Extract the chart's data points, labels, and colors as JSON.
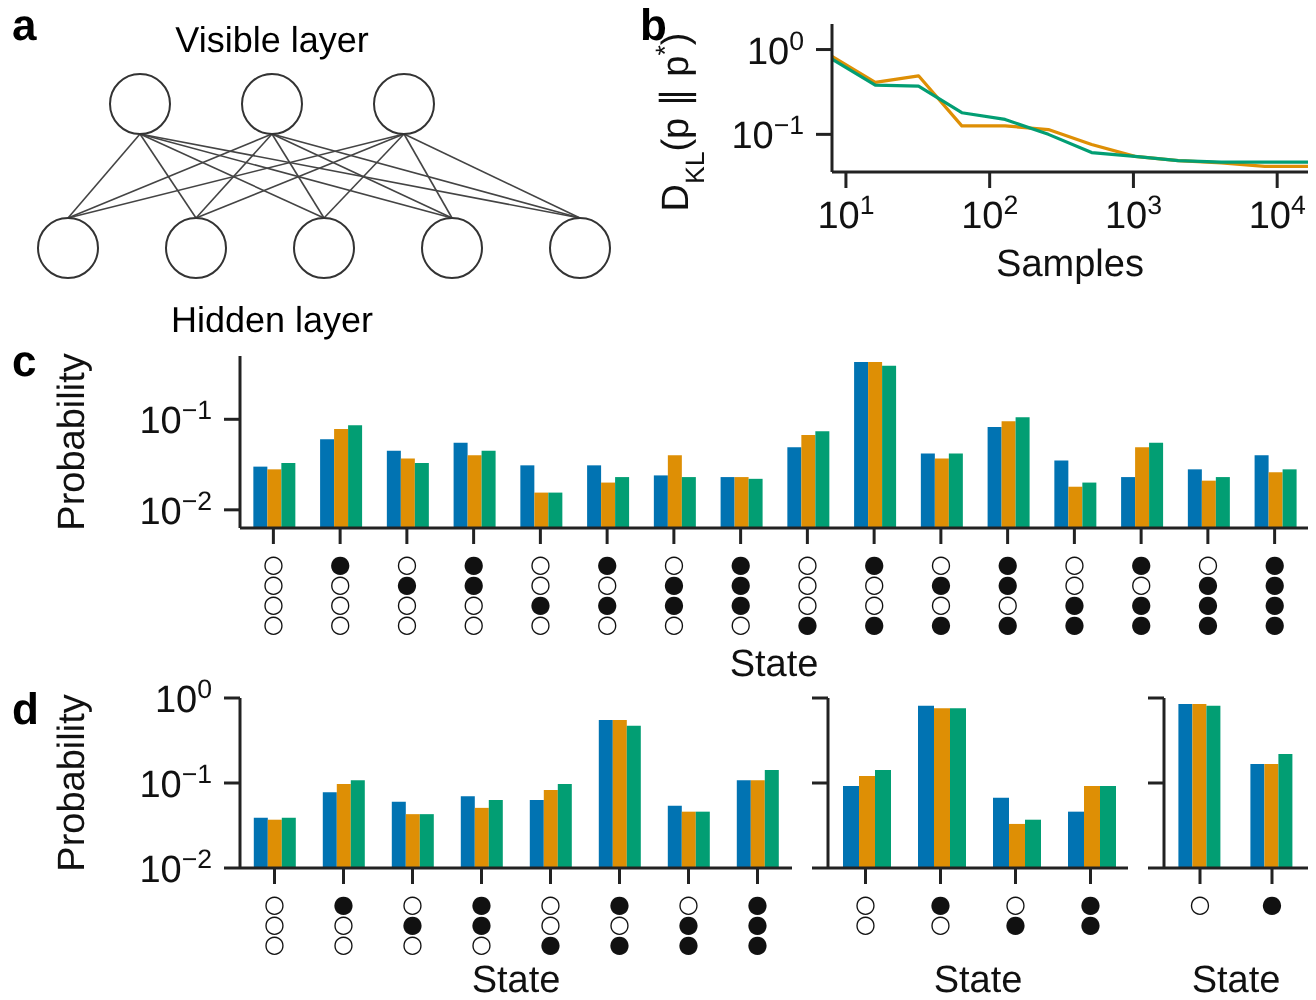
{
  "chart_data": [
    {
      "type": "other",
      "title": "a",
      "annotations": [
        "Visible layer",
        "Hidden layer"
      ]
    },
    {
      "type": "line",
      "title": "b",
      "xlabel": "Samples",
      "ylabel": "D$_{KL}$(p ∥ p$^{*}$)",
      "log": "xy",
      "marker": "none",
      "line_style": "solid",
      "x": [
        8,
        16,
        32,
        64,
        128,
        256,
        512,
        1024,
        2048,
        4096,
        8192,
        16384
      ],
      "xlim": [
        8,
        16384
      ],
      "ylim": [
        0.036,
        2
      ],
      "xticks": [
        {
          "value": 10,
          "label": "10$^{1}$"
        },
        {
          "value": 100,
          "label": "10$^{2}$"
        },
        {
          "value": 1000,
          "label": "10$^{3}$"
        },
        {
          "value": 10000,
          "label": "10$^{4}$"
        }
      ],
      "yticks": [
        {
          "value": 1,
          "label": "10$^{0}$"
        },
        {
          "value": 0.1,
          "label": "10$^{−1}$"
        }
      ],
      "series": [
        {
          "color": "#de8f05",
          "values": [
            0.83,
            0.41,
            0.49,
            0.126,
            0.126,
            0.114,
            0.076,
            0.055,
            0.049,
            0.046,
            0.042,
            0.042
          ]
        },
        {
          "color": "#029e73",
          "values": [
            0.77,
            0.38,
            0.37,
            0.18,
            0.15,
            0.1,
            0.061,
            0.055,
            0.049,
            0.047,
            0.047,
            0.047
          ]
        }
      ]
    },
    {
      "type": "bar",
      "title": "c",
      "xlabel": "State",
      "ylabel": "Probability",
      "log": "y",
      "categories": [
        "○○○○",
        "●○○○",
        "○●○○",
        "●●○○",
        "○○●○",
        "●○●○",
        "○●●○",
        "●●●○",
        "○○○●",
        "●○○●",
        "○●○●",
        "●●○●",
        "○○●●",
        "●○●●",
        "○●●●",
        "●●●●"
      ],
      "ylim": [
        0.0063,
        0.5
      ],
      "yticks": [
        {
          "value": 0.1,
          "label": "10$^{−1}$"
        },
        {
          "value": 0.01,
          "label": "10$^{−2}$"
        }
      ],
      "series": [
        {
          "color": "#0173b2",
          "values": [
            0.03,
            0.06,
            0.045,
            0.055,
            0.031,
            0.031,
            0.024,
            0.023,
            0.049,
            0.43,
            0.042,
            0.082,
            0.035,
            0.023,
            0.028,
            0.04
          ]
        },
        {
          "color": "#de8f05",
          "values": [
            0.028,
            0.078,
            0.037,
            0.04,
            0.0155,
            0.02,
            0.04,
            0.023,
            0.067,
            0.43,
            0.037,
            0.095,
            0.018,
            0.049,
            0.021,
            0.026
          ]
        },
        {
          "color": "#029e73",
          "values": [
            0.033,
            0.086,
            0.033,
            0.045,
            0.0155,
            0.023,
            0.023,
            0.022,
            0.074,
            0.39,
            0.042,
            0.105,
            0.02,
            0.055,
            0.023,
            0.028
          ]
        }
      ]
    },
    {
      "type": "bar",
      "title": "d",
      "xlabel": "State",
      "ylabel": "Probability",
      "log": "y",
      "categories": [
        "○○○",
        "●○○",
        "○●○",
        "●●○",
        "○○●",
        "●○●",
        "○●●",
        "●●●"
      ],
      "ylim": [
        0.01,
        1
      ],
      "yticks": [
        {
          "value": 1,
          "label": "10$^{0}$"
        },
        {
          "value": 0.1,
          "label": "10$^{−1}$"
        },
        {
          "value": 0.01,
          "label": "10$^{−2}$"
        }
      ],
      "series": [
        {
          "color": "#0173b2",
          "values": [
            0.039,
            0.078,
            0.06,
            0.07,
            0.063,
            0.55,
            0.054,
            0.108
          ]
        },
        {
          "color": "#de8f05",
          "values": [
            0.037,
            0.097,
            0.043,
            0.051,
            0.083,
            0.55,
            0.046,
            0.108
          ]
        },
        {
          "color": "#029e73",
          "values": [
            0.039,
            0.108,
            0.043,
            0.063,
            0.097,
            0.47,
            0.046,
            0.142
          ]
        }
      ]
    },
    {
      "type": "bar",
      "xlabel": "State",
      "log": "y",
      "tick_labels": "x",
      "categories": [
        "○○",
        "●○",
        "○●",
        "●●"
      ],
      "ylim": [
        0.01,
        1
      ],
      "yticks": [
        1,
        0.1,
        0.01
      ],
      "series": [
        {
          "color": "#0173b2",
          "values": [
            0.092,
            0.81,
            0.067,
            0.046
          ]
        },
        {
          "color": "#de8f05",
          "values": [
            0.121,
            0.76,
            0.033,
            0.092
          ]
        },
        {
          "color": "#029e73",
          "values": [
            0.142,
            0.76,
            0.037,
            0.092
          ]
        }
      ]
    },
    {
      "type": "bar",
      "xlabel": "State",
      "log": "y",
      "tick_labels": "x",
      "categories": [
        "○",
        "●"
      ],
      "ylim": [
        0.01,
        1
      ],
      "yticks": [
        1,
        0.1,
        0.01
      ],
      "series": [
        {
          "color": "#0173b2",
          "values": [
            0.85,
            0.167
          ]
        },
        {
          "color": "#de8f05",
          "values": [
            0.85,
            0.167
          ]
        },
        {
          "color": "#029e73",
          "values": [
            0.81,
            0.22
          ]
        }
      ]
    }
  ]
}
